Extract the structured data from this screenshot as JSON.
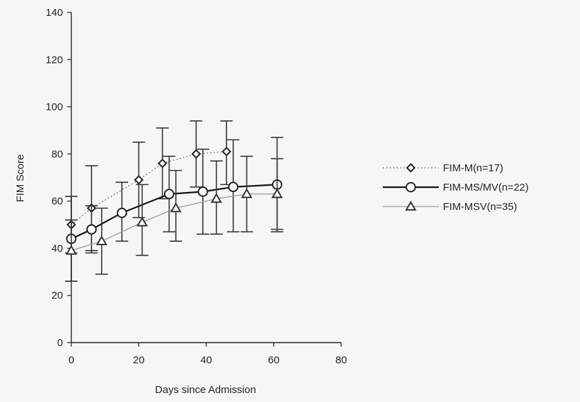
{
  "chart_data": {
    "type": "line",
    "title": "",
    "xlabel": "Days since Admission",
    "ylabel": "FIM Score",
    "xlim": [
      0,
      80
    ],
    "ylim": [
      0,
      140
    ],
    "xticks": [
      "0",
      "20",
      "40",
      "60",
      "80"
    ],
    "yticks": [
      "0",
      "20",
      "40",
      "60",
      "80",
      "100",
      "120",
      "140"
    ],
    "grid": false,
    "legend_position": "right",
    "series": [
      {
        "name": "FIM-M(n=17)",
        "marker": "diamond",
        "line_style": "dotted",
        "color": "#777777",
        "points": [
          {
            "x": 0,
            "y": 50,
            "lo": 38,
            "hi": 62
          },
          {
            "x": 6,
            "y": 57,
            "lo": 39,
            "hi": 75
          },
          {
            "x": 20,
            "y": 69,
            "lo": 53,
            "hi": 85
          },
          {
            "x": 27,
            "y": 76,
            "lo": 61,
            "hi": 91
          },
          {
            "x": 37,
            "y": 80,
            "lo": 66,
            "hi": 94
          },
          {
            "x": 46,
            "y": 81,
            "lo": 67,
            "hi": 94
          }
        ]
      },
      {
        "name": "FIM-MS/MV(n=22)",
        "marker": "circle",
        "line_style": "solid",
        "color": "#111111",
        "points": [
          {
            "x": 0,
            "y": 44,
            "lo": 26,
            "hi": 62
          },
          {
            "x": 6,
            "y": 48,
            "lo": 38,
            "hi": 58
          },
          {
            "x": 15,
            "y": 55,
            "lo": 43,
            "hi": 68
          },
          {
            "x": 29,
            "y": 63,
            "lo": 47,
            "hi": 79
          },
          {
            "x": 39,
            "y": 64,
            "lo": 46,
            "hi": 82
          },
          {
            "x": 48,
            "y": 66,
            "lo": 47,
            "hi": 86
          },
          {
            "x": 61,
            "y": 67,
            "lo": 47,
            "hi": 87
          }
        ]
      },
      {
        "name": "FIM-MSV(n=35)",
        "marker": "triangle",
        "line_style": "solid-light",
        "color": "#999999",
        "points": [
          {
            "x": 0,
            "y": 39,
            "lo": 26,
            "hi": 52
          },
          {
            "x": 9,
            "y": 43,
            "lo": 29,
            "hi": 57
          },
          {
            "x": 21,
            "y": 51,
            "lo": 37,
            "hi": 67
          },
          {
            "x": 31,
            "y": 57,
            "lo": 43,
            "hi": 73
          },
          {
            "x": 43,
            "y": 61,
            "lo": 46,
            "hi": 77
          },
          {
            "x": 52,
            "y": 63,
            "lo": 47,
            "hi": 79
          },
          {
            "x": 61,
            "y": 63,
            "lo": 48,
            "hi": 78
          }
        ]
      }
    ]
  }
}
